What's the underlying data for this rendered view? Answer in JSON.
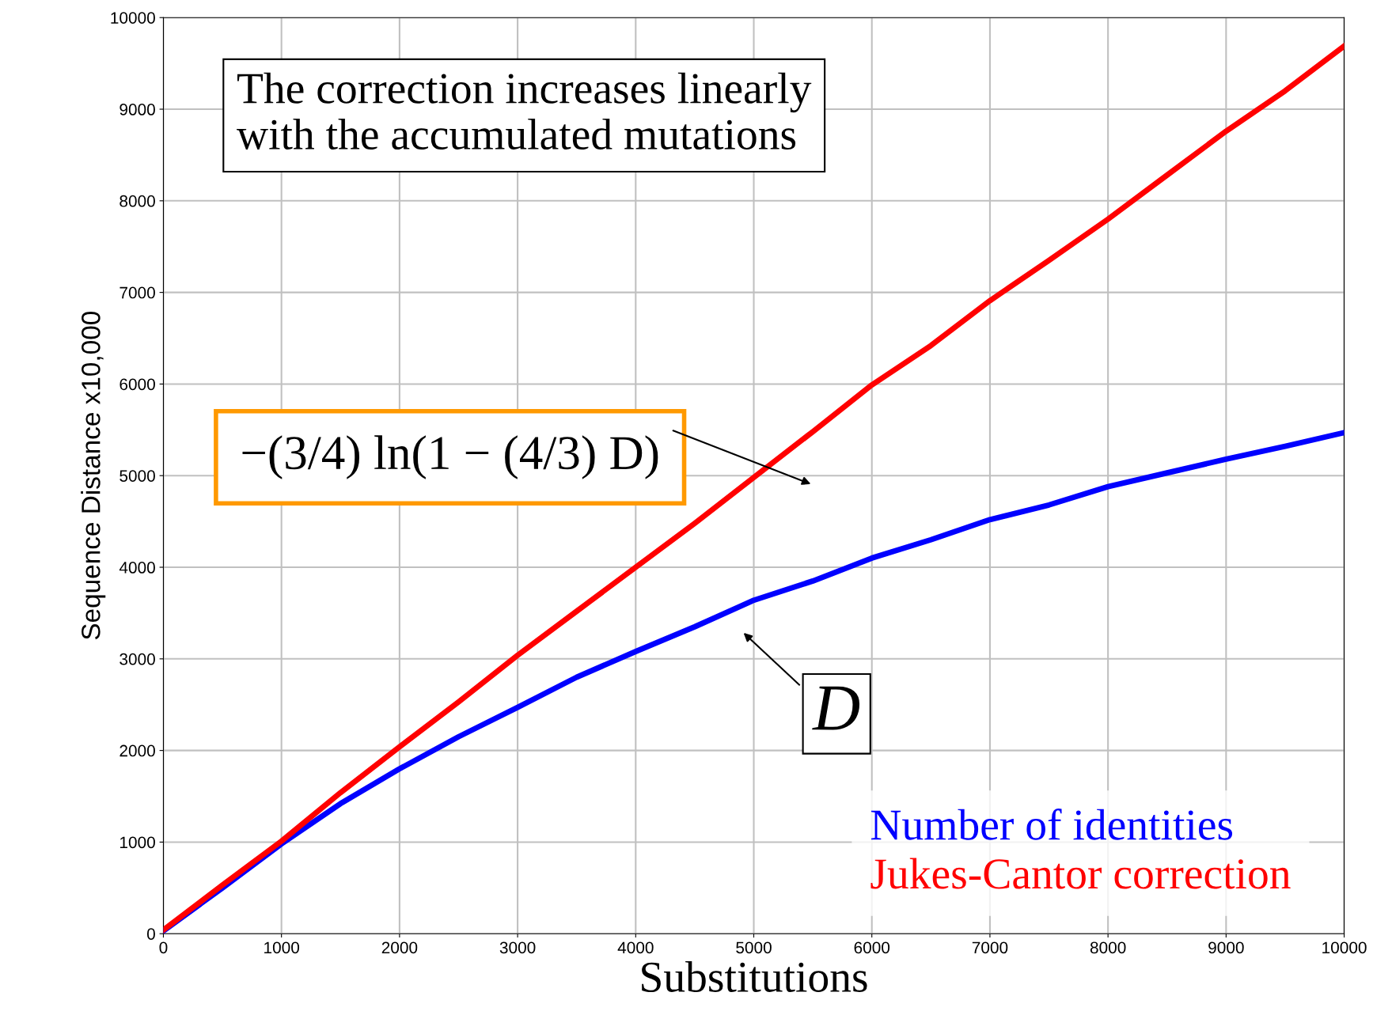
{
  "chart_data": {
    "type": "line",
    "xlabel": "Substitutions",
    "ylabel": "Sequence Distance x10,000",
    "x": [
      0,
      500,
      1000,
      1500,
      2000,
      2500,
      3000,
      3500,
      4000,
      4500,
      5000,
      5500,
      6000,
      6500,
      7000,
      7500,
      8000,
      8500,
      9000,
      9500,
      10000
    ],
    "series": [
      {
        "name": "Number of identities",
        "color": "#0000ff",
        "values": [
          30,
          500,
          980,
          1420,
          1800,
          2150,
          2470,
          2800,
          3080,
          3350,
          3640,
          3850,
          4100,
          4300,
          4520,
          4680,
          4880,
          5030,
          5180,
          5320,
          5470
        ]
      },
      {
        "name": "Jukes-Cantor correction",
        "color": "#ff0000",
        "values": [
          40,
          530,
          1010,
          1540,
          2040,
          2530,
          3040,
          3520,
          4000,
          4480,
          4980,
          5480,
          5990,
          6420,
          6910,
          7350,
          7800,
          8280,
          8760,
          9200,
          9690
        ]
      }
    ],
    "xlim": [
      0,
      10000
    ],
    "ylim": [
      0,
      10000
    ],
    "xticks": [
      0,
      1000,
      2000,
      3000,
      4000,
      5000,
      6000,
      7000,
      8000,
      9000,
      10000
    ],
    "yticks": [
      0,
      1000,
      2000,
      3000,
      4000,
      5000,
      6000,
      7000,
      8000,
      9000,
      10000
    ],
    "grid": true,
    "legend": "bottom right",
    "marker": "none",
    "line_style": "solid",
    "annotations": [
      "The correction increases linearly\nwith the accumulated mutations",
      "−(3/4) ln(1 − (4/3) D)",
      "D"
    ]
  }
}
